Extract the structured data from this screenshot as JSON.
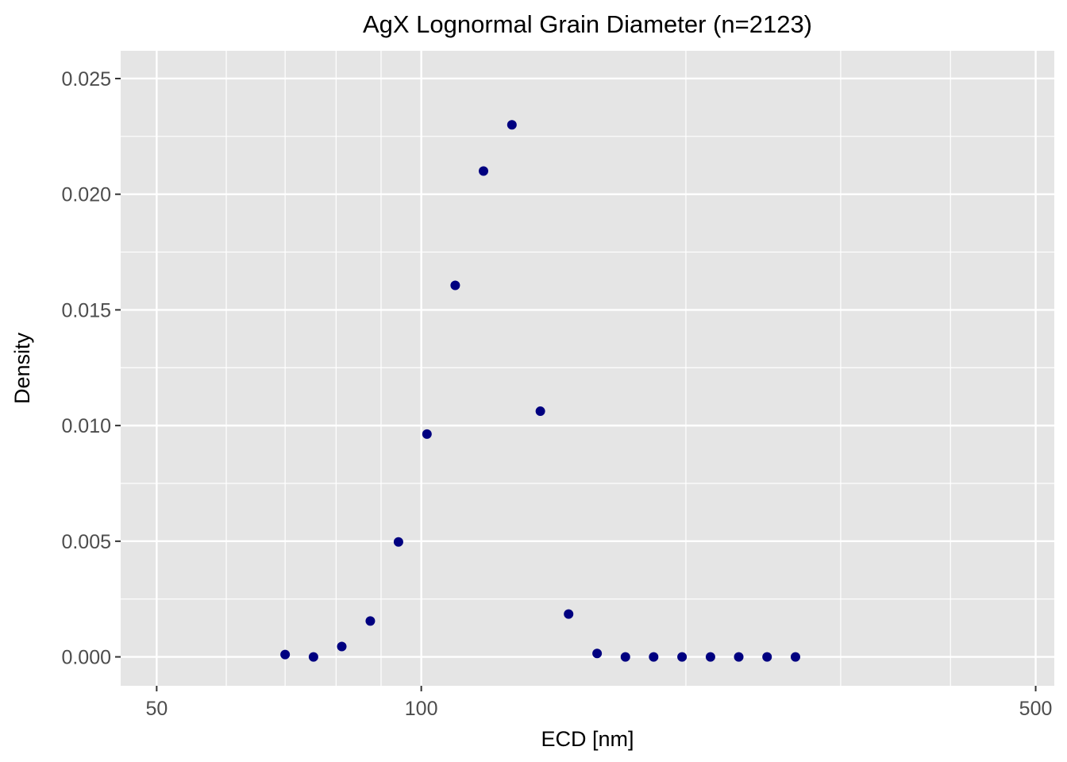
{
  "chart_data": {
    "type": "scatter",
    "title": "AgX Lognormal Grain Diameter (n=2123)",
    "xlabel": "ECD [nm]",
    "ylabel": "Density",
    "x_scale": "log10",
    "xlim": [
      45.5,
      525
    ],
    "ylim": [
      -0.00125,
      0.0262
    ],
    "x_major_ticks": [
      50,
      100,
      500
    ],
    "x_tick_labels": [
      "50",
      "100",
      "500"
    ],
    "x_minor_gridlines": [
      60,
      70,
      80,
      90,
      200,
      300,
      400
    ],
    "y_ticks": [
      0,
      0.005,
      0.01,
      0.015,
      0.02,
      0.025
    ],
    "y_tick_labels": [
      "0.000",
      "0.005",
      "0.010",
      "0.015",
      "0.020",
      "0.025"
    ],
    "grid": true,
    "point_color": "#000080",
    "panel_background": "#e5e5e5",
    "gridline_color": "#ffffff",
    "points": [
      {
        "x": 70.0,
        "y": 0.0001
      },
      {
        "x": 75.4,
        "y": 0.0
      },
      {
        "x": 81.2,
        "y": 0.00045
      },
      {
        "x": 87.5,
        "y": 0.00155
      },
      {
        "x": 94.2,
        "y": 0.00497
      },
      {
        "x": 101.5,
        "y": 0.00963
      },
      {
        "x": 109.3,
        "y": 0.01606
      },
      {
        "x": 117.7,
        "y": 0.021
      },
      {
        "x": 126.8,
        "y": 0.023
      },
      {
        "x": 136.6,
        "y": 0.01062
      },
      {
        "x": 147.1,
        "y": 0.00185
      },
      {
        "x": 158.5,
        "y": 0.00015
      },
      {
        "x": 170.7,
        "y": 0.0
      },
      {
        "x": 183.8,
        "y": 0.0
      },
      {
        "x": 198.0,
        "y": 0.0
      },
      {
        "x": 213.3,
        "y": 0.0
      },
      {
        "x": 229.7,
        "y": 0.0
      },
      {
        "x": 247.4,
        "y": 0.0
      },
      {
        "x": 266.5,
        "y": 0.0
      }
    ]
  }
}
